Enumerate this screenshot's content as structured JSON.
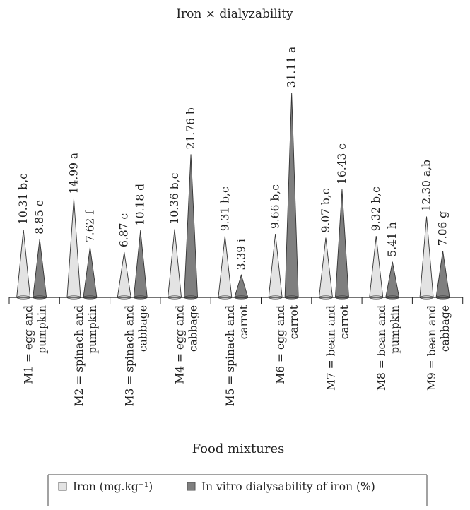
{
  "chart_data": {
    "type": "bar",
    "title": "Iron × dialyzability",
    "xlabel": "Food mixtures",
    "ylabel": "",
    "ylim": [
      0,
      32
    ],
    "grid": false,
    "legend_position": "bottom",
    "categories": [
      [
        "M1 = egg and",
        "pumpkin"
      ],
      [
        "M2 = spinach and",
        "pumpkin"
      ],
      [
        "M3 = spinach and",
        "cabbage"
      ],
      [
        "M4 = egg and",
        "cabbage"
      ],
      [
        "M5 = spinach and",
        "carrot"
      ],
      [
        "M6 = egg and",
        "carrot"
      ],
      [
        "M7 = bean and",
        "carrot"
      ],
      [
        "M8 = bean and",
        "pumpkin"
      ],
      [
        "M9 = bean and",
        "cabbage"
      ]
    ],
    "series": [
      {
        "name": "Iron (mg.kg⁻¹)",
        "color": "#e3e3e3",
        "values": [
          10.31,
          14.99,
          6.87,
          10.36,
          9.31,
          9.66,
          9.07,
          9.32,
          12.3
        ],
        "labels": [
          "10.31 b,c",
          "14.99 a",
          "6.87 c",
          "10.36 b,c",
          "9.31 b,c",
          "9.66 b,c",
          "9.07 b,c",
          "9.32 b,c",
          "12.30 a,b"
        ]
      },
      {
        "name": "In vitro dialysability of iron (%)",
        "color": "#7f7f7f",
        "values": [
          8.85,
          7.62,
          10.18,
          21.76,
          3.39,
          31.11,
          16.43,
          5.41,
          7.06
        ],
        "labels": [
          "8.85 e",
          "7.62 f",
          "10.18 d",
          "21.76 b",
          "3.39 i",
          "31.11 a",
          "16.43 c",
          "5.41 h",
          "7.06 g"
        ]
      }
    ]
  }
}
